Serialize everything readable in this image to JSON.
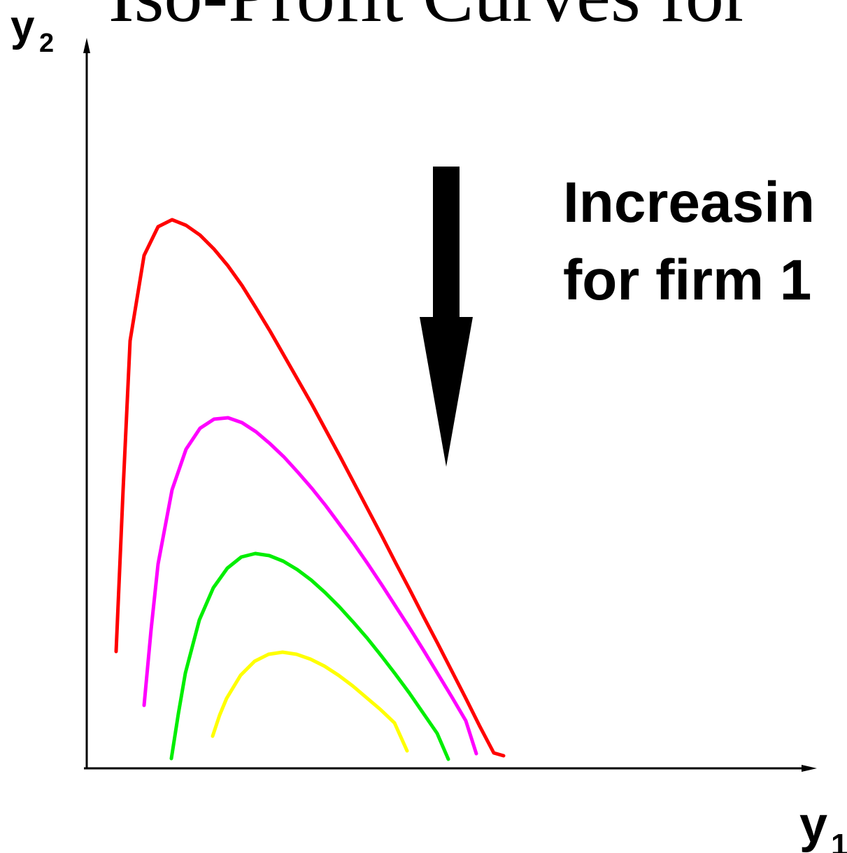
{
  "title": "Iso-Profit Curves for",
  "x_axis": {
    "label_main": "y",
    "label_sub": "1"
  },
  "y_axis": {
    "label_main": "y",
    "label_sub": "2"
  },
  "annotation": {
    "line1": "Increasin",
    "line2": "for firm 1"
  },
  "curves": [
    {
      "name": "",
      "color": "#ff0000"
    },
    {
      "name": "",
      "color": "#ff00ff"
    },
    {
      "name": "",
      "color": "#00ee00"
    },
    {
      "name": "",
      "color": "#ffff00"
    }
  ],
  "arrow": {
    "direction": "down",
    "color": "#000000"
  }
}
